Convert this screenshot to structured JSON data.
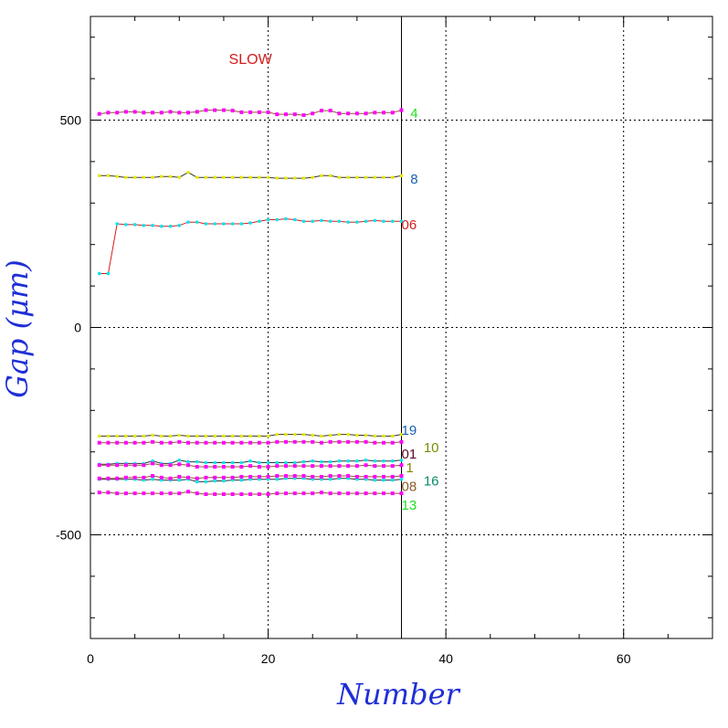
{
  "chart_data": {
    "type": "line",
    "xlabel": "Number",
    "ylabel": "Gap (μm)",
    "xlim": [
      0,
      70
    ],
    "ylim": [
      -750,
      750
    ],
    "x_ticks": [
      0,
      20,
      40,
      60
    ],
    "y_ticks": [
      -500,
      0,
      500
    ],
    "grid": true,
    "annotations": [
      {
        "text": "SLOW",
        "x": 18,
        "y": 635,
        "color": "#d81b1b"
      }
    ],
    "vline_x": 35,
    "series": [
      {
        "name": "4",
        "color": "#ff00ff",
        "line_color": "#8b5a2b",
        "marker": "square",
        "label_color": "#22dd22",
        "label_x": 36,
        "label_y": 516,
        "x": [
          1,
          2,
          3,
          4,
          5,
          6,
          7,
          8,
          9,
          10,
          11,
          12,
          13,
          14,
          15,
          16,
          17,
          18,
          19,
          20,
          21,
          22,
          23,
          24,
          25,
          26,
          27,
          28,
          29,
          30,
          31,
          32,
          33,
          34,
          35
        ],
        "y": [
          515,
          518,
          518,
          520,
          520,
          518,
          518,
          518,
          520,
          518,
          518,
          520,
          524,
          524,
          524,
          523,
          519,
          519,
          519,
          519,
          514,
          514,
          514,
          512,
          516,
          523,
          523,
          516,
          516,
          516,
          516,
          518,
          518,
          518,
          524
        ]
      },
      {
        "name": "8",
        "color": "#e8e800",
        "line_color": "#333333",
        "marker": "dot",
        "label_color": "#1a5fb4",
        "label_x": 36,
        "label_y": 358,
        "x": [
          1,
          2,
          3,
          4,
          5,
          6,
          7,
          8,
          9,
          10,
          11,
          12,
          13,
          14,
          15,
          16,
          17,
          18,
          19,
          20,
          21,
          22,
          23,
          24,
          25,
          26,
          27,
          28,
          29,
          30,
          31,
          32,
          33,
          34,
          35
        ],
        "y": [
          366,
          366,
          364,
          362,
          362,
          362,
          362,
          364,
          364,
          362,
          374,
          362,
          362,
          362,
          362,
          362,
          362,
          362,
          362,
          362,
          360,
          360,
          360,
          360,
          362,
          366,
          366,
          362,
          362,
          362,
          362,
          362,
          362,
          362,
          366
        ]
      },
      {
        "name": "06",
        "color": "#00e5ee",
        "line_color": "#d81b1b",
        "marker": "dot",
        "label_color": "#d81b1b",
        "label_x": 35,
        "label_y": 248,
        "x": [
          1,
          2,
          3,
          4,
          5,
          6,
          7,
          8,
          9,
          10,
          11,
          12,
          13,
          14,
          15,
          16,
          17,
          18,
          19,
          20,
          21,
          22,
          23,
          24,
          25,
          26,
          27,
          28,
          29,
          30,
          31,
          32,
          33,
          34,
          35
        ],
        "y": [
          130,
          130,
          250,
          248,
          248,
          246,
          246,
          244,
          244,
          246,
          254,
          254,
          250,
          250,
          250,
          250,
          250,
          252,
          256,
          260,
          260,
          262,
          260,
          256,
          256,
          258,
          256,
          256,
          254,
          254,
          256,
          258,
          256,
          256,
          256
        ]
      },
      {
        "name": "19",
        "color": "#e8e800",
        "line_color": "#333333",
        "marker": "dot",
        "label_color": "#1a5fb4",
        "label_x": 35,
        "label_y": -248,
        "x": [
          1,
          2,
          3,
          4,
          5,
          6,
          7,
          8,
          9,
          10,
          11,
          12,
          13,
          14,
          15,
          16,
          17,
          18,
          19,
          20,
          21,
          22,
          23,
          24,
          25,
          26,
          27,
          28,
          29,
          30,
          31,
          32,
          33,
          34,
          35
        ],
        "y": [
          -262,
          -262,
          -262,
          -262,
          -262,
          -262,
          -260,
          -262,
          -262,
          -260,
          -262,
          -262,
          -262,
          -262,
          -262,
          -262,
          -262,
          -262,
          -262,
          -262,
          -258,
          -258,
          -258,
          -258,
          -260,
          -262,
          -260,
          -258,
          -258,
          -260,
          -260,
          -262,
          -262,
          -262,
          -258
        ]
      },
      {
        "name": "10",
        "color": "#ff00ff",
        "line_color": "#8b5a2b",
        "marker": "square",
        "label_color": "#7a8a00",
        "label_x": 37.5,
        "label_y": -290,
        "x": [
          1,
          2,
          3,
          4,
          5,
          6,
          7,
          8,
          9,
          10,
          11,
          12,
          13,
          14,
          15,
          16,
          17,
          18,
          19,
          20,
          21,
          22,
          23,
          24,
          25,
          26,
          27,
          28,
          29,
          30,
          31,
          32,
          33,
          34,
          35
        ],
        "y": [
          -278,
          -278,
          -278,
          -278,
          -278,
          -278,
          -276,
          -278,
          -278,
          -276,
          -278,
          -278,
          -278,
          -278,
          -278,
          -278,
          -278,
          -278,
          -278,
          -278,
          -276,
          -276,
          -276,
          -276,
          -276,
          -278,
          -276,
          -276,
          -276,
          -276,
          -276,
          -278,
          -278,
          -278,
          -276
        ]
      },
      {
        "name": "01",
        "color": "#00e5ee",
        "line_color": "#333333",
        "marker": "dot",
        "label_color": "#5a0a2a",
        "label_x": 35,
        "label_y": -305,
        "x": [
          1,
          2,
          3,
          4,
          5,
          6,
          7,
          8,
          9,
          10,
          11,
          12,
          13,
          14,
          15,
          16,
          17,
          18,
          19,
          20,
          21,
          22,
          23,
          24,
          25,
          26,
          27,
          28,
          29,
          30,
          31,
          32,
          33,
          34,
          35
        ],
        "y": [
          -330,
          -330,
          -328,
          -328,
          -328,
          -328,
          -322,
          -328,
          -328,
          -320,
          -324,
          -324,
          -326,
          -326,
          -326,
          -326,
          -326,
          -322,
          -326,
          -326,
          -326,
          -326,
          -326,
          -324,
          -322,
          -324,
          -324,
          -322,
          -322,
          -322,
          -320,
          -322,
          -322,
          -322,
          -320
        ]
      },
      {
        "name": "1",
        "color": "#ff00ff",
        "line_color": "#8b5a2b",
        "marker": "square",
        "label_color": "#7a8a00",
        "label_x": 35.5,
        "label_y": -338,
        "x": [
          1,
          2,
          3,
          4,
          5,
          6,
          7,
          8,
          9,
          10,
          11,
          12,
          13,
          14,
          15,
          16,
          17,
          18,
          19,
          20,
          21,
          22,
          23,
          24,
          25,
          26,
          27,
          28,
          29,
          30,
          31,
          32,
          33,
          34,
          35
        ],
        "y": [
          -332,
          -332,
          -332,
          -332,
          -332,
          -332,
          -328,
          -332,
          -332,
          -330,
          -332,
          -336,
          -336,
          -336,
          -336,
          -336,
          -336,
          -334,
          -336,
          -336,
          -334,
          -334,
          -334,
          -334,
          -334,
          -334,
          -334,
          -334,
          -334,
          -334,
          -332,
          -334,
          -334,
          -334,
          -332
        ]
      },
      {
        "name": "16",
        "color": "#00e5ee",
        "line_color": "#333333",
        "marker": "dot",
        "label_color": "#0a8a6a",
        "label_x": 37.5,
        "label_y": -370,
        "x": [
          1,
          2,
          3,
          4,
          5,
          6,
          7,
          8,
          9,
          10,
          11,
          12,
          13,
          14,
          15,
          16,
          17,
          18,
          19,
          20,
          21,
          22,
          23,
          24,
          25,
          26,
          27,
          28,
          29,
          30,
          31,
          32,
          33,
          34,
          35
        ],
        "y": [
          -366,
          -366,
          -366,
          -366,
          -366,
          -368,
          -366,
          -368,
          -368,
          -368,
          -366,
          -372,
          -372,
          -370,
          -370,
          -368,
          -368,
          -366,
          -366,
          -366,
          -366,
          -364,
          -364,
          -364,
          -366,
          -366,
          -366,
          -364,
          -364,
          -366,
          -366,
          -368,
          -368,
          -368,
          -366
        ]
      },
      {
        "name": "08",
        "color": "#ff00ff",
        "line_color": "#8b5a2b",
        "marker": "square",
        "label_color": "#8b5a2b",
        "label_x": 35,
        "label_y": -383,
        "x": [
          1,
          2,
          3,
          4,
          5,
          6,
          7,
          8,
          9,
          10,
          11,
          12,
          13,
          14,
          15,
          16,
          17,
          18,
          19,
          20,
          21,
          22,
          23,
          24,
          25,
          26,
          27,
          28,
          29,
          30,
          31,
          32,
          33,
          34,
          35
        ],
        "y": [
          -364,
          -364,
          -364,
          -362,
          -362,
          -362,
          -358,
          -362,
          -364,
          -360,
          -362,
          -364,
          -362,
          -362,
          -362,
          -362,
          -360,
          -360,
          -360,
          -360,
          -358,
          -358,
          -358,
          -358,
          -360,
          -360,
          -358,
          -358,
          -358,
          -360,
          -360,
          -360,
          -360,
          -360,
          -358
        ]
      },
      {
        "name": "13",
        "color": "#ff00ff",
        "line_color": "#8b5a2b",
        "marker": "square",
        "label_color": "#22dd22",
        "label_x": 35,
        "label_y": -428,
        "x": [
          1,
          2,
          3,
          4,
          5,
          6,
          7,
          8,
          9,
          10,
          11,
          12,
          13,
          14,
          15,
          16,
          17,
          18,
          19,
          20,
          21,
          22,
          23,
          24,
          25,
          26,
          27,
          28,
          29,
          30,
          31,
          32,
          33,
          34,
          35
        ],
        "y": [
          -398,
          -398,
          -400,
          -400,
          -400,
          -400,
          -400,
          -400,
          -400,
          -400,
          -396,
          -400,
          -402,
          -402,
          -402,
          -402,
          -402,
          -402,
          -402,
          -402,
          -400,
          -400,
          -400,
          -400,
          -400,
          -398,
          -400,
          -400,
          -400,
          -400,
          -400,
          -400,
          -400,
          -400,
          -400
        ]
      }
    ]
  }
}
